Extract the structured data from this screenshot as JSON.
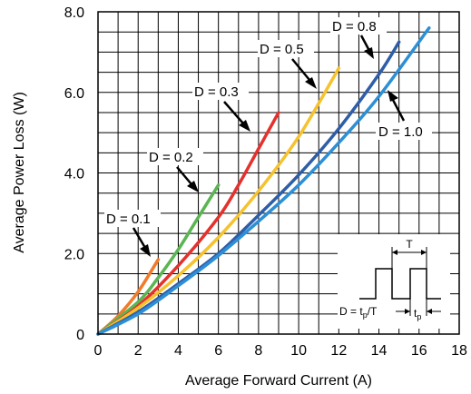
{
  "chart_data": {
    "type": "line",
    "title": "",
    "xlabel": "Average Forward Current (A)",
    "ylabel": "Average Power Loss (W)",
    "xlim": [
      0,
      18
    ],
    "ylim": [
      0,
      8
    ],
    "x_ticks": [
      "0",
      "2",
      "4",
      "6",
      "8",
      "10",
      "12",
      "14",
      "16",
      "18"
    ],
    "y_ticks": [
      "0",
      "2.0",
      "4.0",
      "6.0",
      "8.0"
    ],
    "grid": true,
    "series": [
      {
        "name": "D = 0.1",
        "color": "#f07b2a",
        "x": [
          0,
          1,
          2,
          3
        ],
        "y": [
          0,
          0.45,
          1.05,
          1.85
        ]
      },
      {
        "name": "D = 0.2",
        "color": "#5ab552",
        "x": [
          0,
          2,
          3,
          4,
          5,
          6
        ],
        "y": [
          0,
          0.8,
          1.4,
          2.1,
          2.9,
          3.7
        ]
      },
      {
        "name": "D = 0.3",
        "color": "#e5312d",
        "x": [
          0,
          2,
          4,
          6,
          7,
          8,
          9
        ],
        "y": [
          0,
          0.7,
          1.7,
          2.9,
          3.7,
          4.6,
          5.5
        ]
      },
      {
        "name": "D = 0.5",
        "color": "#f6c22d",
        "x": [
          0,
          2,
          4,
          6,
          8,
          10,
          12
        ],
        "y": [
          0,
          0.65,
          1.45,
          2.4,
          3.55,
          4.9,
          6.6
        ]
      },
      {
        "name": "D = 0.8",
        "color": "#2e5ea8",
        "x": [
          0,
          2,
          4,
          6,
          8,
          10,
          12,
          14,
          15
        ],
        "y": [
          0,
          0.55,
          1.25,
          2.0,
          2.95,
          3.95,
          5.1,
          6.45,
          7.25
        ]
      },
      {
        "name": "D = 1.0",
        "color": "#2d8fd5",
        "x": [
          0,
          2,
          4,
          6,
          8,
          10,
          12,
          14,
          16.5
        ],
        "y": [
          0,
          0.5,
          1.2,
          1.95,
          2.8,
          3.7,
          4.75,
          5.9,
          7.6
        ]
      }
    ],
    "annotations": [
      "D = 0.1",
      "D = 0.2",
      "D = 0.3",
      "D = 0.5",
      "D = 0.8",
      "D = 1.0"
    ],
    "inset": {
      "period_label": "T",
      "duty_formula": "D = t",
      "duty_formula_sub": "p",
      "duty_formula_tail": "/T",
      "pulse_label": "t",
      "pulse_label_sub": "p"
    }
  }
}
